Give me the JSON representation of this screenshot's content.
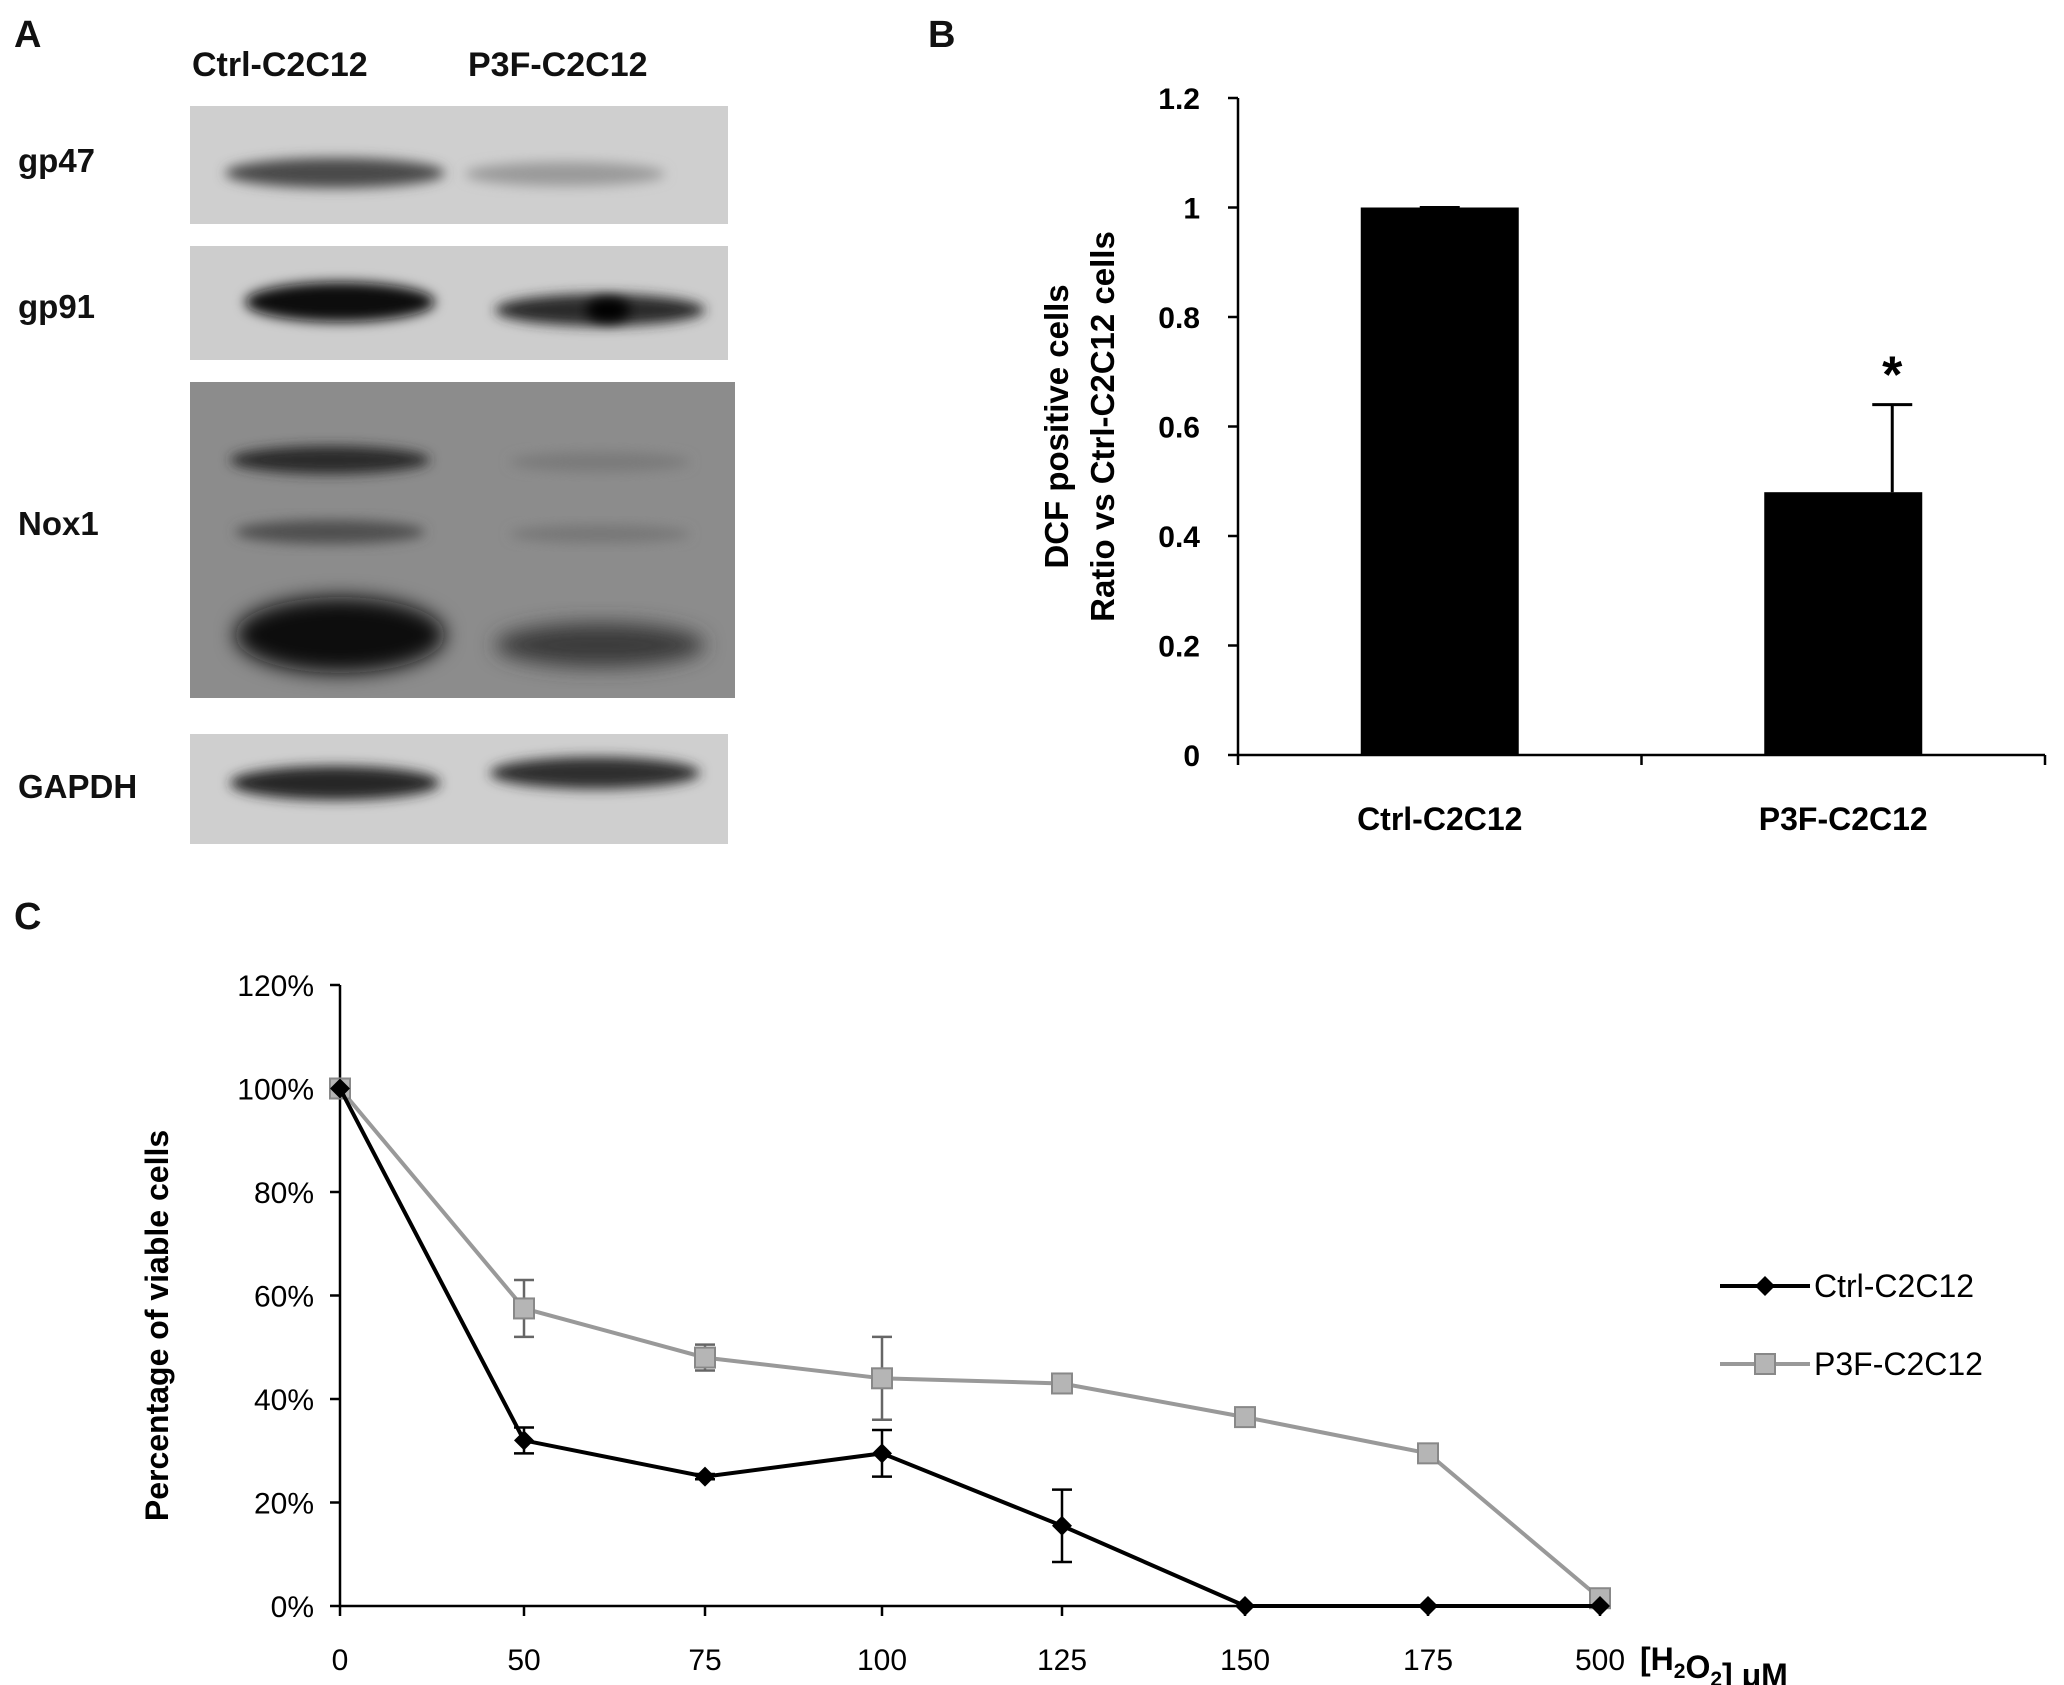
{
  "panels": {
    "a": "A",
    "b": "B",
    "c": "C"
  },
  "blot": {
    "lanes": [
      "Ctrl-C2C12",
      "P3F-C2C12"
    ],
    "proteins": [
      "gp47",
      "gp91",
      "Nox1",
      "GAPDH"
    ]
  },
  "chart_data": [
    {
      "type": "bar",
      "panel": "B",
      "categories": [
        "Ctrl-C2C12",
        "P3F-C2C12"
      ],
      "values": [
        1.0,
        0.48
      ],
      "errors": [
        0.0,
        0.16
      ],
      "annotations": [
        "",
        "*"
      ],
      "ylabel_lines": [
        "DCF positive cells",
        "Ratio vs Ctrl-C2C12 cells"
      ],
      "ylim": [
        0,
        1.2
      ],
      "yticks": [
        "0",
        "0.2",
        "0.4",
        "0.6",
        "0.8",
        "1",
        "1.2"
      ],
      "color": "#000000"
    },
    {
      "type": "line",
      "panel": "C",
      "categories": [
        "0",
        "50",
        "75",
        "100",
        "125",
        "150",
        "175",
        "500"
      ],
      "xlabel": "[H₂O₂] μM",
      "ylabel": "Percentage of viable cells",
      "ylim": [
        0,
        120
      ],
      "yticks": [
        "0%",
        "20%",
        "40%",
        "60%",
        "80%",
        "100%",
        "120%"
      ],
      "legend_position": "right",
      "series": [
        {
          "name": "Ctrl-C2C12",
          "values": [
            100,
            32,
            25,
            29.5,
            15.5,
            0,
            0,
            0
          ],
          "errors": [
            0,
            2.5,
            0.5,
            4.5,
            7,
            0,
            0,
            0
          ],
          "color": "#000000",
          "marker": "diamond"
        },
        {
          "name": "P3F-C2C12",
          "values": [
            100,
            57.5,
            48,
            44,
            43,
            36.5,
            29.5,
            1.5
          ],
          "errors": [
            0,
            5.5,
            2.5,
            8,
            0,
            0,
            0,
            0
          ],
          "color": "#999999",
          "marker": "square"
        }
      ]
    }
  ]
}
